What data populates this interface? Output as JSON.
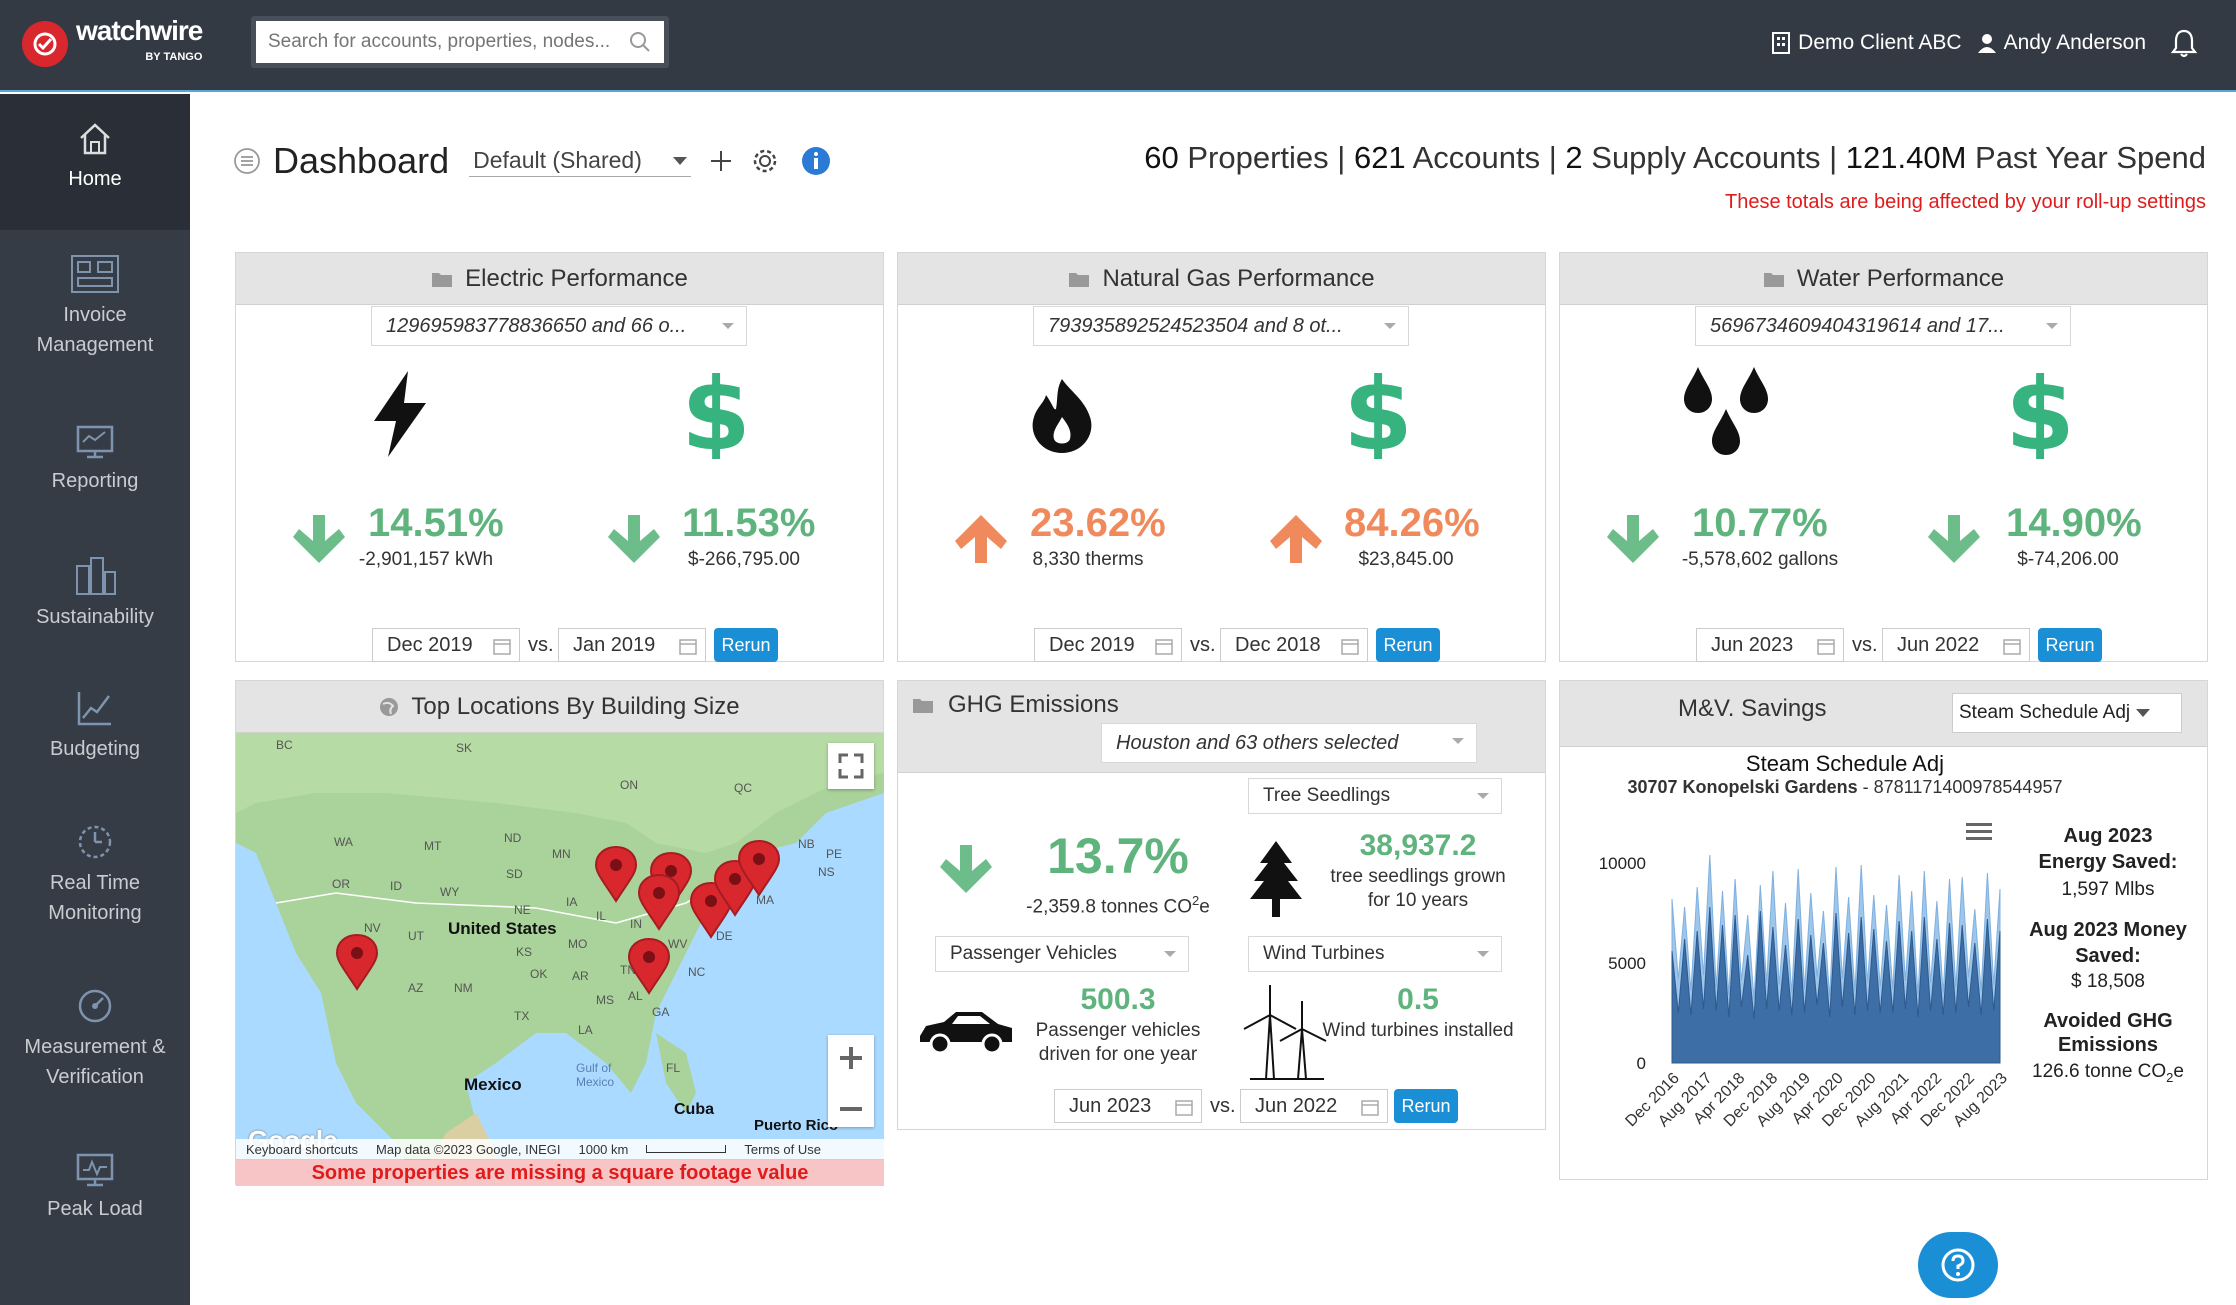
{
  "app": {
    "brand": "watchwire",
    "brand_sub": "BY TANGO"
  },
  "search": {
    "placeholder": "Search for accounts, properties, nodes..."
  },
  "topbar": {
    "client": "Demo Client ABC",
    "user": "Andy Anderson"
  },
  "sidebar": {
    "items": [
      {
        "label": "Home",
        "icon": "home-icon"
      },
      {
        "label": "Invoice Management",
        "icon": "invoice-icon"
      },
      {
        "label": "Reporting",
        "icon": "reporting-icon"
      },
      {
        "label": "Sustainability",
        "icon": "sustainability-icon"
      },
      {
        "label": "Budgeting",
        "icon": "budgeting-icon"
      },
      {
        "label": "Real Time Monitoring",
        "icon": "monitoring-icon"
      },
      {
        "label": "Measurement & Verification",
        "icon": "measurement-icon"
      },
      {
        "label": "Peak Load",
        "icon": "peak-load-icon"
      }
    ]
  },
  "dashboard": {
    "title": "Dashboard",
    "view": "Default (Shared)"
  },
  "totals": {
    "properties_num": "60",
    "properties_label": "Properties",
    "accounts_num": "621",
    "accounts_label": "Accounts",
    "supply_num": "2",
    "supply_label": "Supply Accounts",
    "spend_num": "121.40M",
    "spend_label": "Past Year Spend",
    "warning": "These totals are being affected by your roll-up settings"
  },
  "electric": {
    "title": "Electric Performance",
    "selector": "129695983778836650 and 66 o...",
    "usage_pct": "14.51%",
    "usage_val": "-2,901,157 kWh",
    "cost_pct": "11.53%",
    "cost_val": "$-266,795.00",
    "date1": "Dec 2019",
    "date2": "Jan 2019",
    "vs": "vs.",
    "rerun": "Rerun"
  },
  "gas": {
    "title": "Natural Gas Performance",
    "selector": "793935892524523504 and 8 ot...",
    "usage_pct": "23.62%",
    "usage_val": "8,330 therms",
    "cost_pct": "84.26%",
    "cost_val": "$23,845.00",
    "date1": "Dec 2019",
    "date2": "Dec 2018",
    "vs": "vs.",
    "rerun": "Rerun"
  },
  "water": {
    "title": "Water Performance",
    "selector": "5696734609404319614 and 17...",
    "usage_pct": "10.77%",
    "usage_val": "-5,578,602 gallons",
    "cost_pct": "14.90%",
    "cost_val": "$-74,206.00",
    "date1": "Jun 2023",
    "date2": "Jun 2022",
    "vs": "vs.",
    "rerun": "Rerun"
  },
  "locations": {
    "title": "Top Locations By Building Size",
    "missing": "Some properties are missing a square footage value",
    "labels": [
      "BC",
      "SK",
      "ON",
      "QC",
      "WA",
      "MT",
      "ND",
      "MN",
      "OR",
      "ID",
      "SD",
      "WY",
      "NE",
      "IA",
      "NV",
      "UT",
      "United States",
      "IL",
      "IN",
      "MO",
      "KS",
      "OK",
      "AR",
      "AZ",
      "NM",
      "TX",
      "LA",
      "MS",
      "AL",
      "GA",
      "TN",
      "NC",
      "WV",
      "DE",
      "MA",
      "NB",
      "PE",
      "NS",
      "Mexico",
      "Gulf of Mexico",
      "Cuba",
      "Puerto Rico",
      "FL"
    ],
    "attribution": [
      "Keyboard shortcuts",
      "Map data ©2023 Google, INEGI",
      "1000 km",
      "Terms of Use"
    ],
    "google": "Google"
  },
  "ghg": {
    "title": "GHG Emissions",
    "selector": "Houston and 63 others selected",
    "pct": "13.7%",
    "pct_sub": "-2,359.8 tonnes CO",
    "pct_sup": "2",
    "pct_unit": "e",
    "tree_select": "Tree Seedlings",
    "tree_val": "38,937.2",
    "tree_sub": "tree seedlings grown for 10 years",
    "car_select": "Passenger Vehicles",
    "car_val": "500.3",
    "car_sub": "Passenger vehicles driven for one year",
    "wind_select": "Wind Turbines",
    "wind_val": "0.5",
    "wind_sub": "Wind turbines installed",
    "date1": "Jun 2023",
    "date2": "Jun 2022",
    "vs": "vs.",
    "rerun": "Rerun"
  },
  "mv": {
    "title": "M&V. Savings",
    "select": "Steam Schedule Adj",
    "chart_title": "Steam Schedule Adj",
    "chart_sub_bold": "30707 Konopelski Gardens",
    "chart_sub_rest": " - 8781171400978544957",
    "energy_label1": "Aug 2023",
    "energy_label2": "Energy Saved:",
    "energy_val": "1,597 Mlbs",
    "money_label1": "Aug 2023 Money",
    "money_label2": "Saved:",
    "money_val": "$ 18,508",
    "ghg_label1": "Avoided GHG",
    "ghg_label2": "Emissions",
    "ghg_val": "126.6 tonne CO",
    "ghg_sub": "2",
    "ghg_unit": "e"
  },
  "chart_data": {
    "type": "area",
    "x_ticks": [
      "Dec 2016",
      "Aug 2017",
      "Apr 2018",
      "Dec 2018",
      "Aug 2019",
      "Apr 2020",
      "Dec 2020",
      "Aug 2021",
      "Apr 2022",
      "Dec 2022",
      "Aug 2023"
    ],
    "yticks": [
      "0",
      "5000",
      "10000"
    ],
    "ylim": [
      0,
      10500
    ],
    "series": [
      {
        "values": [
          8200,
          4200,
          7800,
          3600,
          8800,
          4400,
          10400,
          3800,
          8600,
          3400,
          9200,
          4100,
          7400,
          3200,
          8900,
          4000,
          9600,
          3900,
          8000,
          3500,
          9700,
          3700,
          8500,
          4300,
          7600,
          3300,
          9800,
          4200,
          8300,
          3600,
          9900,
          4000,
          8400,
          3800,
          7900,
          3700,
          9400,
          4100,
          8600,
          3400,
          9600,
          4000,
          8100,
          3500,
          9200,
          3800,
          9300,
          4300,
          7700,
          3600,
          9500,
          3900,
          8700
        ]
      },
      {
        "values": [
          5600,
          2500,
          6200,
          2400,
          6600,
          2700,
          7800,
          2600,
          6900,
          2300,
          7400,
          2800,
          5400,
          2200,
          7600,
          2700,
          6800,
          2600,
          5900,
          2400,
          7200,
          2500,
          6400,
          2900,
          6000,
          2300,
          7500,
          2800,
          6500,
          2400,
          7300,
          2600,
          6700,
          2500,
          6100,
          2500,
          7100,
          2700,
          6600,
          2300,
          7300,
          2600,
          6200,
          2400,
          7000,
          2500,
          6900,
          2800,
          6000,
          2400,
          7200,
          2600,
          6600
        ]
      }
    ]
  }
}
